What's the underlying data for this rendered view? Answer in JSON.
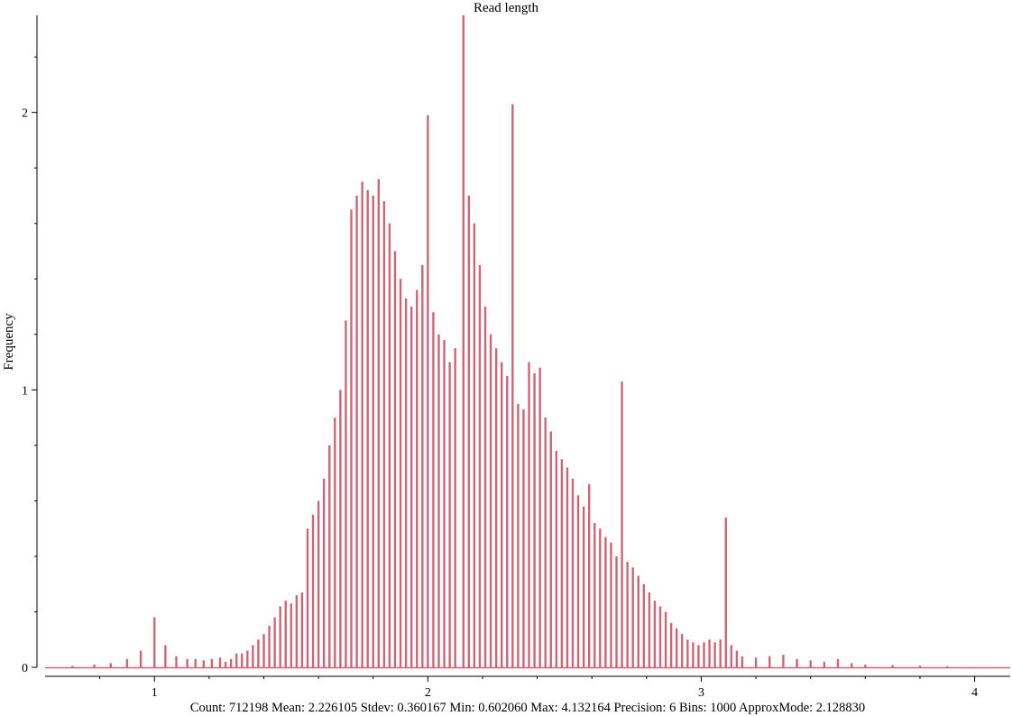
{
  "chart_data": {
    "type": "bar",
    "title": "Read length",
    "ylabel": "Frequency",
    "xlabel": "",
    "xlim": [
      0.6,
      4.13
    ],
    "ylim": [
      0,
      2.35
    ],
    "x_ticks": [
      {
        "v": 1,
        "label": "1"
      },
      {
        "v": 2,
        "label": "2"
      },
      {
        "v": 3,
        "label": "3"
      },
      {
        "v": 4,
        "label": "4"
      }
    ],
    "y_ticks": [
      {
        "v": 0,
        "label": "0"
      },
      {
        "v": 1,
        "label": "1"
      },
      {
        "v": 2,
        "label": "2"
      }
    ],
    "grid": false,
    "legend": "none",
    "bar_color": "#cc6677",
    "x": [
      0.7,
      0.78,
      0.84,
      0.9,
      0.95,
      1.0,
      1.04,
      1.08,
      1.12,
      1.15,
      1.18,
      1.21,
      1.24,
      1.26,
      1.28,
      1.3,
      1.32,
      1.34,
      1.36,
      1.38,
      1.4,
      1.42,
      1.44,
      1.46,
      1.48,
      1.5,
      1.52,
      1.54,
      1.56,
      1.58,
      1.6,
      1.62,
      1.64,
      1.66,
      1.68,
      1.7,
      1.72,
      1.74,
      1.76,
      1.78,
      1.8,
      1.82,
      1.84,
      1.86,
      1.88,
      1.9,
      1.92,
      1.94,
      1.96,
      1.98,
      2.0,
      2.02,
      2.04,
      2.06,
      2.08,
      2.1,
      2.13,
      2.15,
      2.17,
      2.19,
      2.21,
      2.23,
      2.25,
      2.27,
      2.29,
      2.31,
      2.33,
      2.35,
      2.37,
      2.39,
      2.41,
      2.43,
      2.45,
      2.47,
      2.49,
      2.51,
      2.53,
      2.55,
      2.57,
      2.59,
      2.61,
      2.63,
      2.65,
      2.67,
      2.69,
      2.71,
      2.73,
      2.75,
      2.77,
      2.79,
      2.81,
      2.83,
      2.85,
      2.87,
      2.89,
      2.91,
      2.93,
      2.95,
      2.97,
      2.99,
      3.01,
      3.03,
      3.05,
      3.07,
      3.09,
      3.11,
      3.13,
      3.15,
      3.2,
      3.25,
      3.3,
      3.35,
      3.4,
      3.45,
      3.5,
      3.55,
      3.6,
      3.7,
      3.8,
      3.9
    ],
    "values": [
      0.005,
      0.01,
      0.015,
      0.03,
      0.06,
      0.18,
      0.08,
      0.04,
      0.03,
      0.03,
      0.025,
      0.03,
      0.035,
      0.02,
      0.03,
      0.05,
      0.05,
      0.06,
      0.08,
      0.1,
      0.12,
      0.15,
      0.18,
      0.22,
      0.24,
      0.23,
      0.26,
      0.27,
      0.5,
      0.55,
      0.6,
      0.68,
      0.8,
      0.9,
      1.0,
      1.25,
      1.65,
      1.7,
      1.75,
      1.72,
      1.7,
      1.76,
      1.68,
      1.6,
      1.5,
      1.4,
      1.33,
      1.3,
      1.36,
      1.45,
      1.99,
      1.28,
      1.2,
      1.18,
      1.1,
      1.15,
      2.35,
      1.7,
      1.6,
      1.45,
      1.3,
      1.2,
      1.15,
      1.1,
      1.05,
      2.03,
      0.95,
      0.93,
      1.1,
      1.06,
      1.08,
      0.9,
      0.85,
      0.78,
      0.75,
      0.72,
      0.68,
      0.62,
      0.58,
      0.66,
      0.52,
      0.5,
      0.47,
      0.45,
      0.4,
      1.03,
      0.38,
      0.36,
      0.33,
      0.3,
      0.27,
      0.24,
      0.22,
      0.2,
      0.16,
      0.14,
      0.12,
      0.1,
      0.09,
      0.08,
      0.09,
      0.1,
      0.09,
      0.1,
      0.54,
      0.08,
      0.06,
      0.04,
      0.035,
      0.04,
      0.045,
      0.03,
      0.025,
      0.02,
      0.03,
      0.015,
      0.01,
      0.008,
      0.006,
      0.004
    ],
    "footer_stats": "Count: 712198 Mean: 2.226105 Stdev: 0.360167 Min: 0.602060 Max: 4.132164 Precision: 6 Bins: 1000 ApproxMode: 2.128830"
  }
}
